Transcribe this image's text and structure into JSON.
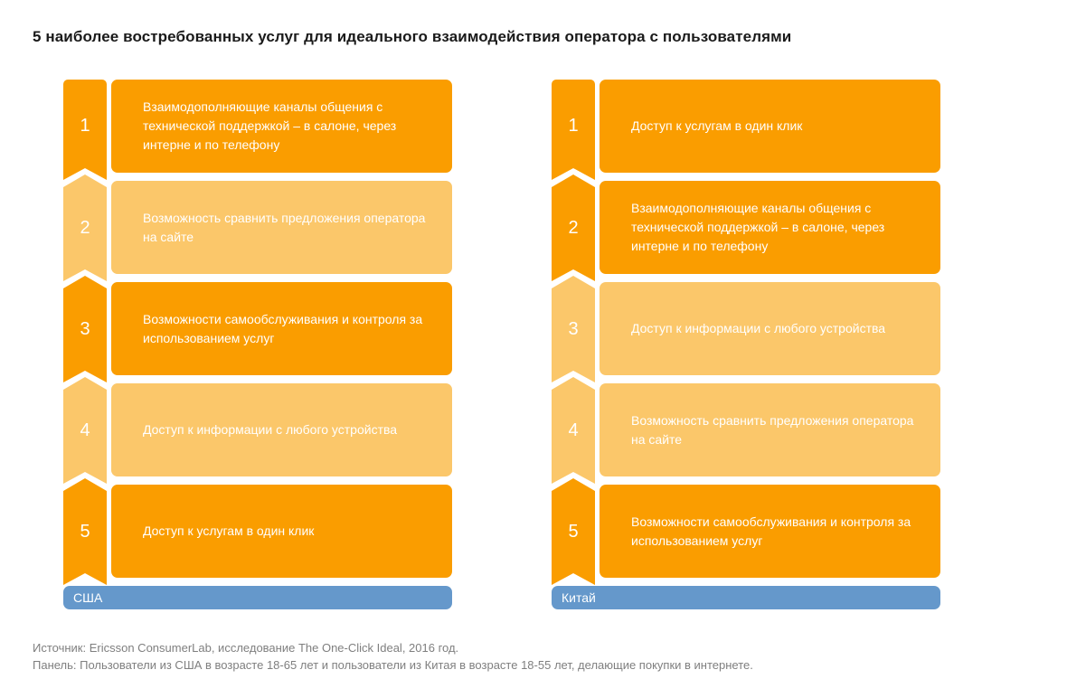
{
  "title": "5 наиболее востребованных услуг для идеального взаимодействия оператора с пользователями",
  "colors": {
    "orange": "#FA9D00",
    "light_orange": "#FBC76A",
    "blue": "#6598CB",
    "title_text": "#1A1A1A",
    "footer_text": "#7F7F7F",
    "item_text": "#FFFFFF"
  },
  "columns": [
    {
      "country": "США",
      "items": [
        {
          "rank": "1",
          "tone": "dark",
          "label": "Взаимодополняющие каналы общения с технической поддержкой – в салоне, через интерне и по телефону"
        },
        {
          "rank": "2",
          "tone": "light",
          "label": "Возможность сравнить предложения оператора на сайте"
        },
        {
          "rank": "3",
          "tone": "dark",
          "label": "Возможности самообслуживания и контроля за использованием услуг"
        },
        {
          "rank": "4",
          "tone": "light",
          "label": "Доступ к информации с любого устройства"
        },
        {
          "rank": "5",
          "tone": "dark",
          "label": "Доступ к услугам в один клик"
        }
      ]
    },
    {
      "country": "Китай",
      "items": [
        {
          "rank": "1",
          "tone": "dark",
          "label": "Доступ к услугам в один клик"
        },
        {
          "rank": "2",
          "tone": "dark",
          "label": "Взаимодополняющие каналы общения с технической поддержкой – в салоне, через интерне и по телефону"
        },
        {
          "rank": "3",
          "tone": "light",
          "label": "Доступ к информации с любого устройства"
        },
        {
          "rank": "4",
          "tone": "light",
          "label": "Возможность сравнить предложения оператора на сайте"
        },
        {
          "rank": "5",
          "tone": "dark",
          "label": "Возможности самообслуживания и контроля за использованием услуг"
        }
      ]
    }
  ],
  "footer": {
    "line1": "Источник: Ericsson ConsumerLab, исследование The One-Click Ideal, 2016 год.",
    "line2": "Панель: Пользователи из США в возрасте 18-65 лет и пользователи из Китая в возрасте 18-55 лет, делающие покупки в интернете."
  }
}
